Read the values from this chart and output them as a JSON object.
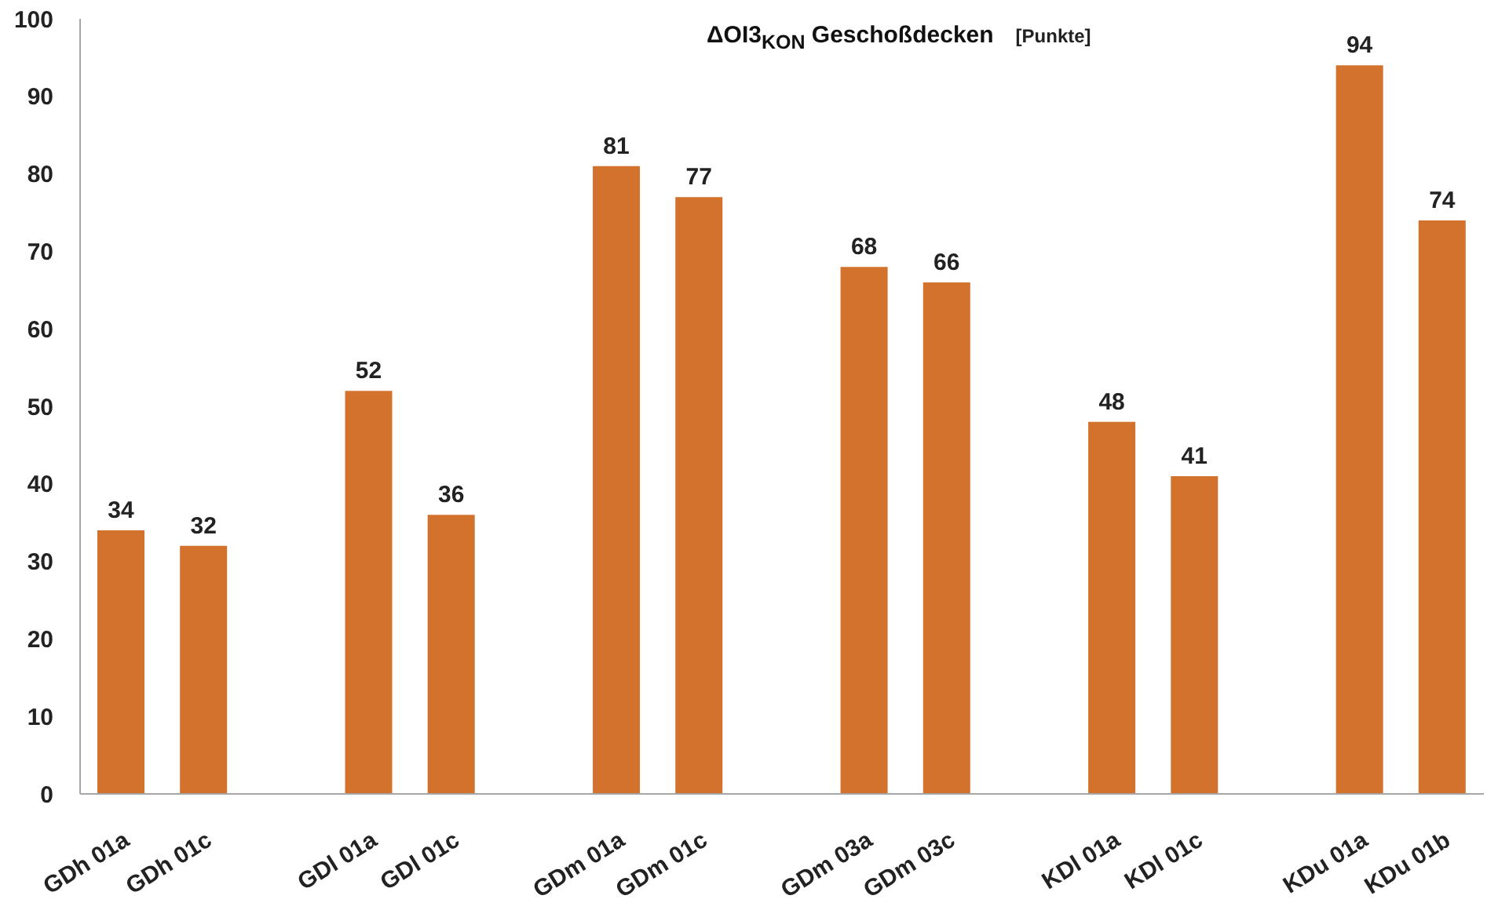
{
  "chart_data": {
    "type": "bar",
    "title": "ΔOI3$_{KON}$ Geschoßdecken",
    "ylabel": "[Punkte]",
    "categories": [
      "GDh 01a",
      "GDh 01c",
      null,
      "GDl 01a",
      "GDl 01c",
      null,
      "GDm 01a",
      "GDm 01c",
      null,
      "GDm 03a",
      "GDm 03c",
      null,
      "KDl 01a",
      "KDl 01c",
      null,
      "KDu 01a",
      "KDu 01b"
    ],
    "values": [
      34,
      32,
      null,
      52,
      36,
      null,
      81,
      77,
      null,
      68,
      66,
      null,
      48,
      41,
      null,
      94,
      74
    ],
    "color": "#d2722c",
    "ylim": [
      0,
      100
    ],
    "yticks": [
      0,
      10,
      20,
      30,
      40,
      50,
      60,
      70,
      80,
      90,
      100
    ],
    "data_labels": true
  }
}
